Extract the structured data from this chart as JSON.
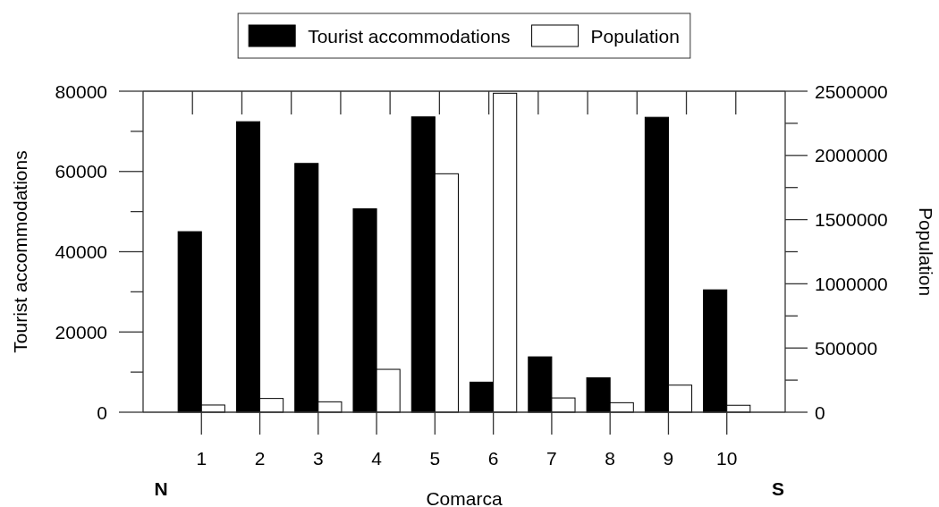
{
  "chart_data": {
    "type": "bar",
    "categories": [
      "1",
      "2",
      "3",
      "4",
      "5",
      "6",
      "7",
      "8",
      "9",
      "10"
    ],
    "xlabel": "Comarca",
    "ylabel": "Tourist accommodations",
    "y2label": "Population",
    "series": [
      {
        "name": "Tourist accommodations",
        "color": "#000000",
        "values": [
          45000,
          72400,
          62000,
          50700,
          73600,
          7500,
          13800,
          8600,
          73500,
          30500
        ]
      },
      {
        "name": "Population",
        "color": "#ffffff",
        "axis": "y2",
        "values": [
          56000,
          107000,
          81000,
          334000,
          1857000,
          2484000,
          111000,
          74000,
          211000,
          54000
        ]
      }
    ],
    "ylim": [
      0,
      80000
    ],
    "yticks": [
      0,
      {
        "value": 10000,
        "label": null
      },
      20000,
      {
        "value": 30000,
        "label": null
      },
      40000,
      {
        "value": 50000,
        "label": null
      },
      60000,
      {
        "value": 70000,
        "label": null
      },
      80000
    ],
    "y2lim": [
      0,
      2500000
    ],
    "y2ticks": [
      0,
      {
        "value": 250000,
        "label": null
      },
      500000,
      {
        "value": 750000,
        "label": null
      },
      1000000,
      {
        "value": 1250000,
        "label": null
      },
      1500000,
      {
        "value": 1750000,
        "label": null
      },
      2000000,
      {
        "value": 2250000,
        "label": null
      },
      2500000
    ],
    "annotations": [
      "N",
      "S"
    ],
    "legend": "top"
  }
}
